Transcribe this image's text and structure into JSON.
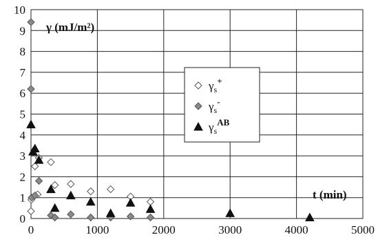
{
  "chart_data": {
    "type": "scatter",
    "title": "",
    "ylabel": "γ (mJ/m²)",
    "xlabel": "t (min)",
    "xlim": [
      0,
      5000
    ],
    "ylim": [
      0,
      10
    ],
    "x_ticks": [
      "0",
      "1000",
      "2000",
      "3000",
      "4000",
      "5000"
    ],
    "y_ticks": [
      "0",
      "1",
      "2",
      "3",
      "4",
      "5",
      "6",
      "7",
      "8",
      "9",
      "10"
    ],
    "grid": true,
    "legend_position": "center-right",
    "series": [
      {
        "name": "γs+",
        "label_base": "γ",
        "label_sub": "s",
        "label_sup": "+",
        "marker": "diamond-open",
        "color": "#555555",
        "points": [
          {
            "x": 0,
            "y": 0.35
          },
          {
            "x": 5,
            "y": 0.9
          },
          {
            "x": 60,
            "y": 2.5
          },
          {
            "x": 100,
            "y": 1.15
          },
          {
            "x": 120,
            "y": 2.9
          },
          {
            "x": 300,
            "y": 2.7
          },
          {
            "x": 360,
            "y": 1.6
          },
          {
            "x": 600,
            "y": 1.65
          },
          {
            "x": 900,
            "y": 1.3
          },
          {
            "x": 1200,
            "y": 1.4
          },
          {
            "x": 1500,
            "y": 1.05
          },
          {
            "x": 1800,
            "y": 0.8
          }
        ]
      },
      {
        "name": "γs-",
        "label_base": "γ",
        "label_sub": "s",
        "label_sup": "-",
        "marker": "diamond-filled",
        "color": "#8a8a8a",
        "points": [
          {
            "x": 0,
            "y": 9.4
          },
          {
            "x": 0,
            "y": 6.2
          },
          {
            "x": 10,
            "y": 1.0
          },
          {
            "x": 60,
            "y": 1.1
          },
          {
            "x": 120,
            "y": 1.8
          },
          {
            "x": 300,
            "y": 0.15
          },
          {
            "x": 360,
            "y": 0.05
          },
          {
            "x": 600,
            "y": 0.2
          },
          {
            "x": 900,
            "y": 0.05
          },
          {
            "x": 1200,
            "y": 0.05
          },
          {
            "x": 1500,
            "y": 0.1
          },
          {
            "x": 1800,
            "y": 0.05
          }
        ]
      },
      {
        "name": "γsAB",
        "label_base": "γ",
        "label_sub": "s",
        "label_sup": "AB",
        "marker": "triangle-filled",
        "color": "#111111",
        "points": [
          {
            "x": 0,
            "y": 4.5
          },
          {
            "x": 30,
            "y": 3.2
          },
          {
            "x": 60,
            "y": 3.35
          },
          {
            "x": 120,
            "y": 2.8
          },
          {
            "x": 300,
            "y": 1.4
          },
          {
            "x": 360,
            "y": 0.5
          },
          {
            "x": 600,
            "y": 1.1
          },
          {
            "x": 900,
            "y": 0.8
          },
          {
            "x": 1200,
            "y": 0.25
          },
          {
            "x": 1500,
            "y": 0.75
          },
          {
            "x": 1800,
            "y": 0.45
          },
          {
            "x": 3000,
            "y": 0.25
          },
          {
            "x": 4200,
            "y": 0.05
          }
        ]
      }
    ]
  }
}
